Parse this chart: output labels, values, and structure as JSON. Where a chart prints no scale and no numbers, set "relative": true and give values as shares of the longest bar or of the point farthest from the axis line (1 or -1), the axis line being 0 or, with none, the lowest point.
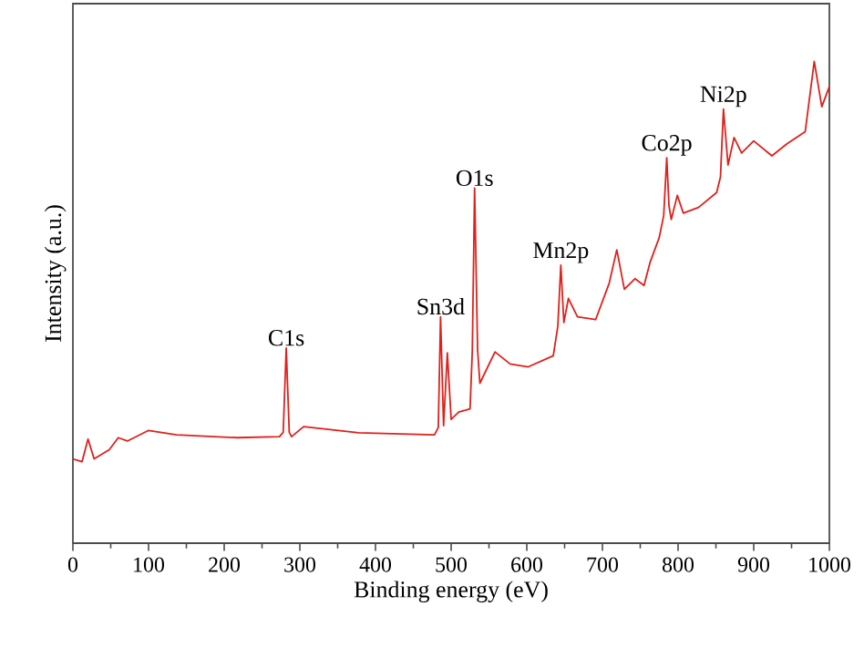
{
  "chart_data": {
    "type": "line",
    "relative": true,
    "xlabel": "Binding energy (eV)",
    "ylabel": "Intensity (a.u.)",
    "xlim": [
      0,
      1000
    ],
    "xticks": [
      0,
      100,
      200,
      300,
      400,
      500,
      600,
      700,
      800,
      900,
      1000
    ],
    "marker": "none",
    "line_style": "solid",
    "series": [
      {
        "color": "#e0201b",
        "x": [
          0,
          12,
          20,
          28,
          48,
          60,
          72,
          100,
          137,
          217,
          273,
          278,
          282,
          286,
          289,
          305,
          378,
          478,
          483,
          486,
          490,
          495,
          500,
          510,
          525,
          528,
          531,
          535,
          538,
          558,
          578,
          602,
          635,
          641,
          645,
          649,
          655,
          667,
          691,
          709,
          719,
          729,
          743,
          755,
          763,
          775,
          781,
          785,
          788,
          791,
          799,
          807,
          827,
          851,
          856,
          860,
          866,
          874,
          884,
          900,
          924,
          944,
          968,
          980,
          990,
          1000
        ],
        "values": [
          0.175,
          0.169,
          0.216,
          0.175,
          0.194,
          0.219,
          0.212,
          0.234,
          0.225,
          0.219,
          0.221,
          0.23,
          0.405,
          0.23,
          0.221,
          0.242,
          0.229,
          0.225,
          0.24,
          0.47,
          0.244,
          0.395,
          0.257,
          0.272,
          0.279,
          0.4,
          0.737,
          0.4,
          0.332,
          0.397,
          0.372,
          0.366,
          0.389,
          0.45,
          0.577,
          0.458,
          0.508,
          0.47,
          0.464,
          0.54,
          0.609,
          0.527,
          0.549,
          0.535,
          0.583,
          0.634,
          0.68,
          0.8,
          0.7,
          0.672,
          0.722,
          0.685,
          0.697,
          0.728,
          0.76,
          0.901,
          0.785,
          0.842,
          0.81,
          0.835,
          0.804,
          0.829,
          0.854,
          1,
          0.906,
          0.948
        ]
      }
    ],
    "annotations": [
      {
        "text": "C1s",
        "x": 282,
        "y": 0.405
      },
      {
        "text": "Sn3d",
        "x": 486,
        "y": 0.47
      },
      {
        "text": "O1s",
        "x": 531,
        "y": 0.737
      },
      {
        "text": "Mn2p",
        "x": 645,
        "y": 0.577
      },
      {
        "text": "Co2p",
        "x": 785,
        "y": 0.8
      },
      {
        "text": "Ni2p",
        "x": 860,
        "y": 0.901
      }
    ]
  }
}
